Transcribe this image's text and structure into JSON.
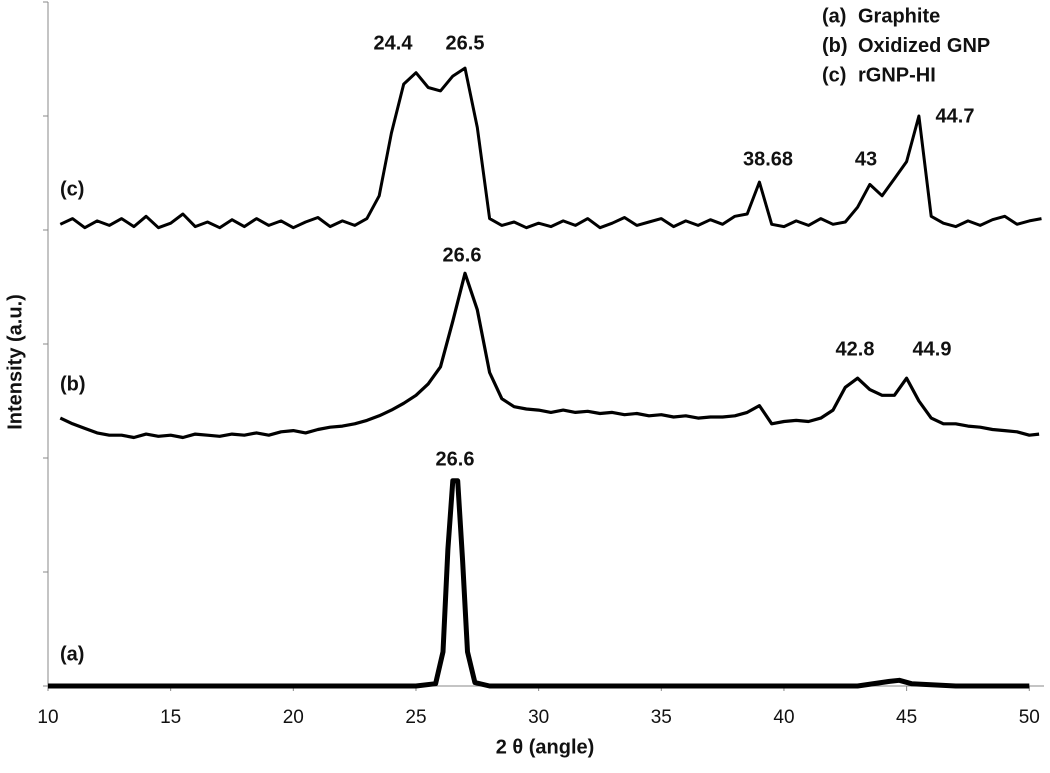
{
  "chart_data": {
    "type": "line",
    "x_label": "2 θ (angle)",
    "y_label": "Intensity (a.u.)",
    "xlim": [
      10,
      50.6
    ],
    "xticks": [
      10,
      15,
      20,
      25,
      30,
      35,
      40,
      45,
      50
    ],
    "ylim": [
      0,
      6
    ],
    "yticks": [
      0,
      1,
      2,
      3,
      4,
      5,
      6
    ],
    "grid": false,
    "series": [
      {
        "label": "(a)",
        "name": "Graphite",
        "color": "#000000",
        "x": [
          10,
          20,
          25,
          25.8,
          26.1,
          26.3,
          26.5,
          26.7,
          26.9,
          27.1,
          27.4,
          28,
          35,
          43,
          44.3,
          44.7,
          45.2,
          47,
          50
        ],
        "values": [
          0,
          0,
          0,
          0.02,
          0.3,
          1.2,
          1.8,
          1.8,
          1.1,
          0.3,
          0.03,
          0,
          0,
          0,
          0.04,
          0.05,
          0.02,
          0,
          0
        ]
      },
      {
        "label": "(b)",
        "name": "Oxidized GNP",
        "color": "#000000",
        "x": [
          10.5,
          11,
          11.5,
          12,
          12.5,
          13,
          13.5,
          14,
          14.5,
          15,
          15.5,
          16,
          16.5,
          17,
          17.5,
          18,
          18.5,
          19,
          19.5,
          20,
          20.5,
          21,
          21.5,
          22,
          22.5,
          23,
          23.5,
          24,
          24.5,
          25,
          25.5,
          26,
          26.5,
          27,
          27.5,
          28,
          28.5,
          29,
          29.5,
          30,
          30.5,
          31,
          31.5,
          32,
          32.5,
          33,
          33.5,
          34,
          34.5,
          35,
          35.5,
          36,
          36.5,
          37,
          37.5,
          38,
          38.5,
          39,
          39.5,
          40,
          40.5,
          41,
          41.5,
          42,
          42.5,
          43,
          43.5,
          44,
          44.5,
          45,
          45.5,
          46,
          46.5,
          47,
          47.5,
          48,
          48.5,
          49,
          49.5,
          50,
          50.4
        ],
        "values": [
          2.35,
          2.3,
          2.26,
          2.22,
          2.2,
          2.2,
          2.18,
          2.21,
          2.19,
          2.2,
          2.18,
          2.21,
          2.2,
          2.19,
          2.21,
          2.2,
          2.22,
          2.2,
          2.23,
          2.24,
          2.22,
          2.25,
          2.27,
          2.28,
          2.3,
          2.33,
          2.37,
          2.42,
          2.48,
          2.55,
          2.65,
          2.8,
          3.2,
          3.62,
          3.3,
          2.75,
          2.52,
          2.45,
          2.43,
          2.42,
          2.4,
          2.42,
          2.4,
          2.41,
          2.39,
          2.4,
          2.38,
          2.39,
          2.37,
          2.38,
          2.36,
          2.37,
          2.35,
          2.36,
          2.36,
          2.37,
          2.4,
          2.46,
          2.3,
          2.32,
          2.33,
          2.32,
          2.35,
          2.42,
          2.62,
          2.7,
          2.6,
          2.55,
          2.55,
          2.7,
          2.5,
          2.35,
          2.3,
          2.3,
          2.28,
          2.27,
          2.25,
          2.24,
          2.23,
          2.2,
          2.21
        ]
      },
      {
        "label": "(c)",
        "name": "rGNP-HI",
        "color": "#000000",
        "x": [
          10.5,
          11,
          11.5,
          12,
          12.5,
          13,
          13.5,
          14,
          14.5,
          15,
          15.5,
          16,
          16.5,
          17,
          17.5,
          18,
          18.5,
          19,
          19.5,
          20,
          20.5,
          21,
          21.5,
          22,
          22.5,
          23,
          23.5,
          24,
          24.5,
          25,
          25.5,
          26,
          26.5,
          27,
          27.5,
          28,
          28.5,
          29,
          29.5,
          30,
          30.5,
          31,
          31.5,
          32,
          32.5,
          33,
          33.5,
          34,
          34.5,
          35,
          35.5,
          36,
          36.5,
          37,
          37.5,
          38,
          38.5,
          39,
          39.5,
          40,
          40.5,
          41,
          41.5,
          42,
          42.5,
          43,
          43.5,
          44,
          44.5,
          45,
          45.5,
          46,
          46.5,
          47,
          47.5,
          48,
          48.5,
          49,
          49.5,
          50,
          50.5
        ],
        "values": [
          4.05,
          4.1,
          4.02,
          4.08,
          4.04,
          4.1,
          4.03,
          4.12,
          4.02,
          4.06,
          4.14,
          4.03,
          4.07,
          4.02,
          4.09,
          4.03,
          4.1,
          4.04,
          4.08,
          4.02,
          4.07,
          4.11,
          4.03,
          4.08,
          4.04,
          4.1,
          4.3,
          4.85,
          5.28,
          5.38,
          5.25,
          5.22,
          5.35,
          5.42,
          4.9,
          4.1,
          4.04,
          4.07,
          4.02,
          4.06,
          4.03,
          4.08,
          4.04,
          4.1,
          4.02,
          4.06,
          4.11,
          4.04,
          4.07,
          4.1,
          4.03,
          4.08,
          4.04,
          4.09,
          4.05,
          4.12,
          4.14,
          4.42,
          4.05,
          4.03,
          4.08,
          4.04,
          4.1,
          4.05,
          4.07,
          4.2,
          4.4,
          4.3,
          4.45,
          4.6,
          5.0,
          4.12,
          4.06,
          4.03,
          4.08,
          4.04,
          4.09,
          4.12,
          4.05,
          4.08,
          4.1
        ]
      }
    ],
    "annotations": [
      "24.4",
      "26.5",
      "26.6",
      "26.6",
      "38.68",
      "43",
      "44.7",
      "42.8",
      "44.9"
    ]
  }
}
